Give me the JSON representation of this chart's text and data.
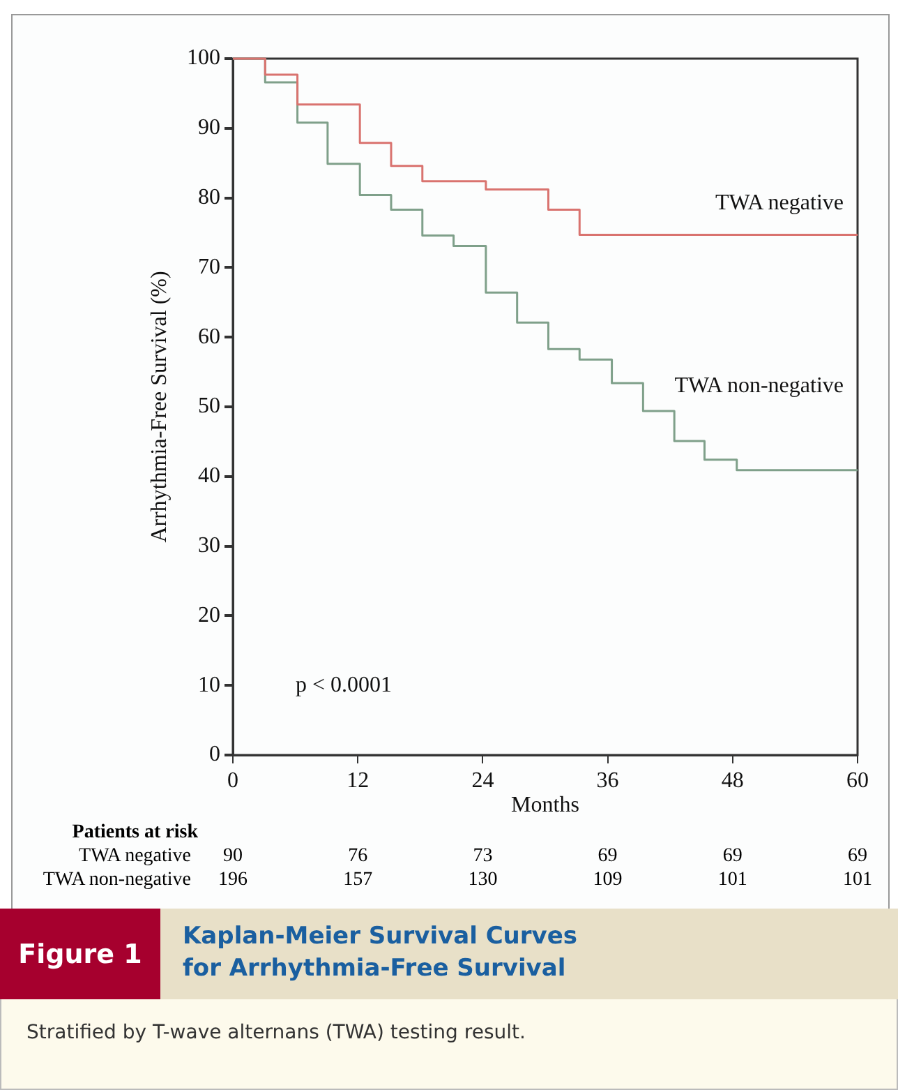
{
  "chart_data": {
    "type": "step",
    "title": "Kaplan-Meier Survival Curves for Arrhythmia-Free Survival",
    "subtitle": "Stratified by T-wave alternans (TWA) testing result.",
    "xlabel": "Months",
    "ylabel": "Arrhythmia-Free Survival (%)",
    "xlim": [
      0,
      60
    ],
    "xticks": [
      0,
      12,
      24,
      36,
      48,
      60
    ],
    "ylim": [
      0,
      100
    ],
    "yticks": [
      0,
      10,
      20,
      30,
      40,
      50,
      60,
      70,
      80,
      90,
      100
    ],
    "grid": false,
    "legend": false,
    "marker": "none",
    "annotations": [
      "Figure 1",
      "p < 0.0001",
      "Patients at risk",
      "TWA negative",
      "90",
      "76",
      "73",
      "69",
      "69",
      "69",
      "TWA non-negative",
      "196",
      "157",
      "130",
      "109",
      "101",
      "101"
    ],
    "series": [
      {
        "name": "TWA negative",
        "color": "#d9736f",
        "x": [
          0,
          3.1,
          6.2,
          12.2,
          15.2,
          18.2,
          24.3,
          30.3,
          33.3,
          60
        ],
        "values": [
          100,
          97.7,
          93.4,
          87.9,
          84.6,
          82.4,
          81.2,
          78.3,
          74.7,
          74.7
        ]
      },
      {
        "name": "TWA non-negative",
        "color": "#7fa08a",
        "x": [
          0,
          3.1,
          6.2,
          9.1,
          12.2,
          15.2,
          18.2,
          21.2,
          24.3,
          27.3,
          30.3,
          33.3,
          36.4,
          39.4,
          42.4,
          45.3,
          48.4,
          60
        ],
        "values": [
          100,
          96.6,
          90.8,
          84.9,
          80.4,
          78.3,
          74.6,
          73.1,
          66.4,
          62.1,
          58.3,
          56.8,
          53.4,
          49.4,
          45.1,
          42.4,
          40.9,
          40.9
        ]
      }
    ]
  }
}
